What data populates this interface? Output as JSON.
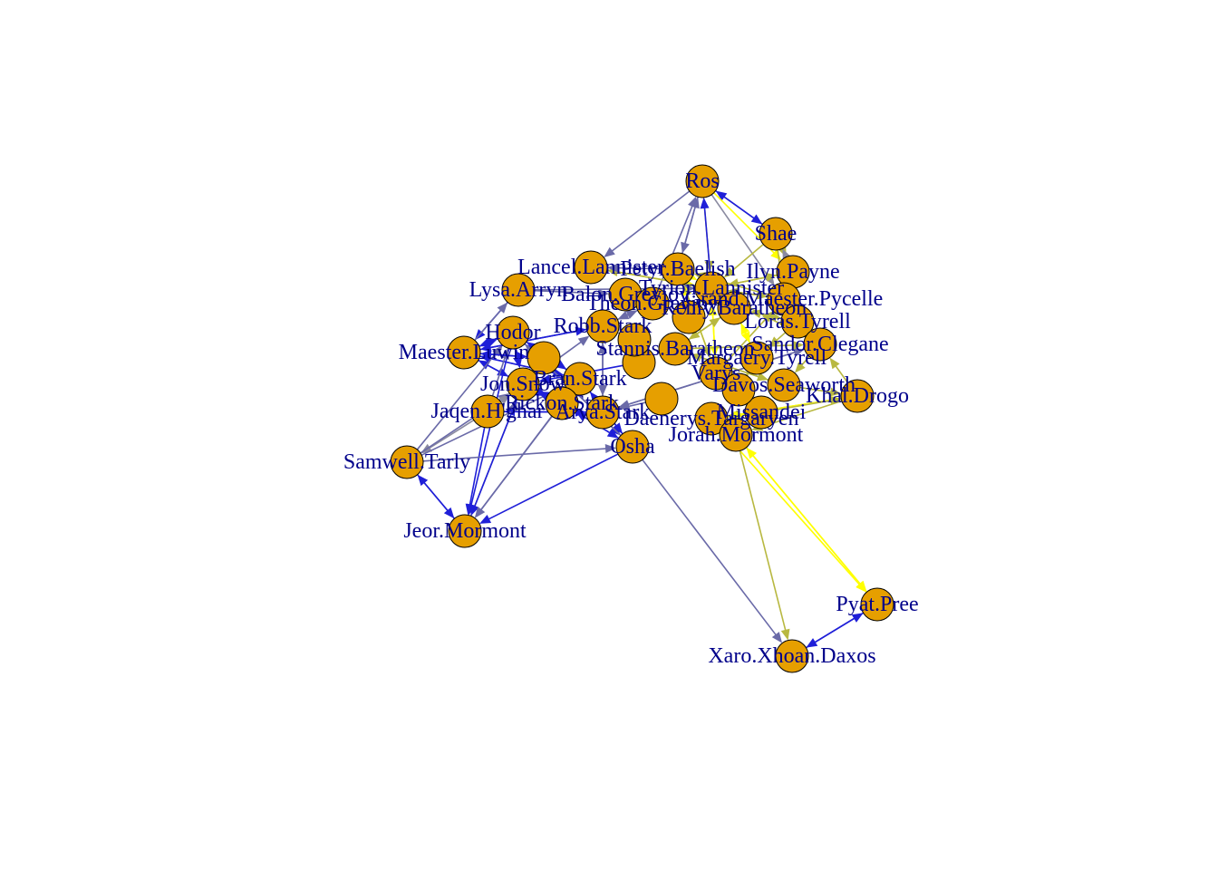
{
  "colors": {
    "node_fill": "#e69f00",
    "node_stroke": "#000000",
    "label": "#00008b",
    "edge_blue": "#1f1fd8",
    "edge_slate": "#6a6aa8",
    "edge_gray": "#8a8aa0",
    "edge_olive": "#b8b840",
    "edge_yellow": "#ffff00"
  },
  "nodes": [
    {
      "id": "ros",
      "label": "Ros"
    },
    {
      "id": "shae",
      "label": "Shae"
    },
    {
      "id": "lancel",
      "label": "Lancel.Lannister"
    },
    {
      "id": "petyr",
      "label": "Petyr.Baelish"
    },
    {
      "id": "tyrion",
      "label": "Tyrion.Lannister"
    },
    {
      "id": "ilyn",
      "label": "Ilyn.Payne"
    },
    {
      "id": "lysa",
      "label": "Lysa.Arryn"
    },
    {
      "id": "balon",
      "label": "Balon.Greyjoy"
    },
    {
      "id": "grand",
      "label": "Grand.Maester.Pycelle"
    },
    {
      "id": "theon",
      "label": "Theon.Greyjoy"
    },
    {
      "id": "renly",
      "label": "Renly.Baratheon"
    },
    {
      "id": "loras",
      "label": "Loras.Tyrell"
    },
    {
      "id": "hodor",
      "label": "Hodor"
    },
    {
      "id": "robb",
      "label": "Robb.Stark"
    },
    {
      "id": "sandor",
      "label": "Sandor.Clegane"
    },
    {
      "id": "maester",
      "label": "Maester.Luwin"
    },
    {
      "id": "stannis",
      "label": "Stannis.Baratheon"
    },
    {
      "id": "margaery",
      "label": "Margaery.Tyrell"
    },
    {
      "id": "jon",
      "label": "Jon.Snow"
    },
    {
      "id": "bran",
      "label": "Bran.Stark"
    },
    {
      "id": "varys",
      "label": "Varys"
    },
    {
      "id": "davos",
      "label": "Davos.Seaworth"
    },
    {
      "id": "khal",
      "label": "Khal.Drogo"
    },
    {
      "id": "jaqen",
      "label": "Jaqen.H'ghar"
    },
    {
      "id": "rickon",
      "label": "Rickon.Stark"
    },
    {
      "id": "arya",
      "label": "Arya.Stark"
    },
    {
      "id": "missandei",
      "label": "Missandei"
    },
    {
      "id": "daenerys",
      "label": "Daenerys.Targaryen"
    },
    {
      "id": "jorah",
      "label": "Jorah.Mormont"
    },
    {
      "id": "osha",
      "label": "Osha"
    },
    {
      "id": "samwell",
      "label": "Samwell.Tarly"
    },
    {
      "id": "jeor",
      "label": "Jeor.Mormont"
    },
    {
      "id": "pyat",
      "label": "Pyat.Pree"
    },
    {
      "id": "xaro",
      "label": "Xaro.Xhoan.Daxos"
    },
    {
      "id": "n35",
      "label": ""
    },
    {
      "id": "n36",
      "label": ""
    },
    {
      "id": "n37",
      "label": ""
    },
    {
      "id": "n38",
      "label": ""
    },
    {
      "id": "n39",
      "label": ""
    },
    {
      "id": "n40",
      "label": ""
    }
  ],
  "edges": [
    [
      "ros",
      "shae",
      "blue"
    ],
    [
      "shae",
      "ros",
      "blue"
    ],
    [
      "ros",
      "tyrion",
      "olive"
    ],
    [
      "tyrion",
      "ros",
      "blue"
    ],
    [
      "ros",
      "petyr",
      "slate"
    ],
    [
      "petyr",
      "ros",
      "slate"
    ],
    [
      "ros",
      "ilyn",
      "yellow"
    ],
    [
      "theon",
      "ros",
      "slate"
    ],
    [
      "ros",
      "lancel",
      "slate"
    ],
    [
      "ros",
      "grand",
      "gray"
    ],
    [
      "shae",
      "tyrion",
      "olive"
    ],
    [
      "shae",
      "ilyn",
      "olive"
    ],
    [
      "shae",
      "grand",
      "olive"
    ],
    [
      "ilyn",
      "shae",
      "gray"
    ],
    [
      "hodor",
      "maester",
      "blue"
    ],
    [
      "maester",
      "hodor",
      "blue"
    ],
    [
      "maester",
      "jon",
      "blue"
    ],
    [
      "jon",
      "maester",
      "blue"
    ],
    [
      "hodor",
      "jon",
      "blue"
    ],
    [
      "maester",
      "bran",
      "blue"
    ],
    [
      "bran",
      "maester",
      "blue"
    ],
    [
      "robb",
      "maester",
      "blue"
    ],
    [
      "jaqen",
      "arya",
      "blue"
    ],
    [
      "arya",
      "jaqen",
      "blue"
    ],
    [
      "jaqen",
      "jeor",
      "blue"
    ],
    [
      "jaqen",
      "samwell",
      "gray"
    ],
    [
      "samwell",
      "jeor",
      "blue"
    ],
    [
      "jeor",
      "samwell",
      "blue"
    ],
    [
      "samwell",
      "jon",
      "slate"
    ],
    [
      "samwell",
      "hodor",
      "slate"
    ],
    [
      "samwell",
      "osha",
      "slate"
    ],
    [
      "samwell",
      "bran",
      "slate"
    ],
    [
      "jeor",
      "jon",
      "slate"
    ],
    [
      "hodor",
      "jeor",
      "blue"
    ],
    [
      "bran",
      "jeor",
      "slate"
    ],
    [
      "osha",
      "jeor",
      "blue"
    ],
    [
      "jon",
      "jeor",
      "blue"
    ],
    [
      "rickon",
      "jeor",
      "slate"
    ],
    [
      "osha",
      "xaro",
      "slate"
    ],
    [
      "jorah",
      "pyat",
      "yellow"
    ],
    [
      "pyat",
      "jorah",
      "yellow"
    ],
    [
      "daenerys",
      "pyat",
      "yellow"
    ],
    [
      "jorah",
      "xaro",
      "olive"
    ],
    [
      "xaro",
      "pyat",
      "blue"
    ],
    [
      "pyat",
      "xaro",
      "blue"
    ],
    [
      "khal",
      "daenerys",
      "olive"
    ],
    [
      "khal",
      "jorah",
      "olive"
    ],
    [
      "daenerys",
      "khal",
      "yellow"
    ],
    [
      "davos",
      "khal",
      "olive"
    ],
    [
      "missandei",
      "khal",
      "olive"
    ],
    [
      "sandor",
      "davos",
      "olive"
    ],
    [
      "stannis",
      "davos",
      "olive"
    ],
    [
      "loras",
      "renly",
      "olive"
    ],
    [
      "renly",
      "loras",
      "olive"
    ],
    [
      "grand",
      "tyrion",
      "olive"
    ],
    [
      "tyrion",
      "grand",
      "olive"
    ],
    [
      "petyr",
      "tyrion",
      "yellow"
    ],
    [
      "tyrion",
      "varys",
      "yellow"
    ],
    [
      "varys",
      "tyrion",
      "yellow"
    ],
    [
      "lancel",
      "tyrion",
      "yellow"
    ],
    [
      "tyrion",
      "lancel",
      "olive"
    ],
    [
      "balon",
      "theon",
      "slate"
    ],
    [
      "theon",
      "balon",
      "slate"
    ],
    [
      "lysa",
      "tyrion",
      "slate"
    ],
    [
      "lysa",
      "balon",
      "slate"
    ],
    [
      "lysa",
      "maester",
      "blue"
    ],
    [
      "robb",
      "theon",
      "slate"
    ],
    [
      "theon",
      "robb",
      "slate"
    ],
    [
      "robb",
      "arya",
      "slate"
    ],
    [
      "arya",
      "robb",
      "slate"
    ],
    [
      "margaery",
      "renly",
      "yellow"
    ],
    [
      "renly",
      "stannis",
      "olive"
    ],
    [
      "stannis",
      "renly",
      "olive"
    ],
    [
      "bran",
      "osha",
      "blue"
    ],
    [
      "osha",
      "bran",
      "blue"
    ],
    [
      "rickon",
      "osha",
      "blue"
    ],
    [
      "osha",
      "rickon",
      "blue"
    ],
    [
      "hodor",
      "osha",
      "blue"
    ],
    [
      "osha",
      "hodor",
      "slate"
    ],
    [
      "jon",
      "robb",
      "slate"
    ],
    [
      "arya",
      "sandor",
      "slate"
    ],
    [
      "sandor",
      "arya",
      "slate"
    ],
    [
      "varys",
      "petyr",
      "yellow"
    ],
    [
      "petyr",
      "varys",
      "olive"
    ],
    [
      "daenerys",
      "jorah",
      "yellow"
    ],
    [
      "jorah",
      "daenerys",
      "olive"
    ],
    [
      "missandei",
      "daenerys",
      "olive"
    ],
    [
      "daenerys",
      "missandei",
      "yellow"
    ],
    [
      "davos",
      "stannis",
      "olive"
    ],
    [
      "jaqen",
      "jon",
      "gray"
    ],
    [
      "jaqen",
      "hodor",
      "slate"
    ],
    [
      "maester",
      "robb",
      "blue"
    ],
    [
      "maester",
      "lysa",
      "slate"
    ],
    [
      "n35",
      "maester",
      "blue"
    ],
    [
      "maester",
      "n35",
      "blue"
    ],
    [
      "n36",
      "jon",
      "blue"
    ],
    [
      "n37",
      "arya",
      "slate"
    ],
    [
      "n38",
      "tyrion",
      "yellow"
    ],
    [
      "n39",
      "robb",
      "slate"
    ],
    [
      "n40",
      "margaery",
      "olive"
    ],
    [
      "rickon",
      "jon",
      "blue"
    ],
    [
      "jon",
      "rickon",
      "blue"
    ],
    [
      "bran",
      "rickon",
      "slate"
    ],
    [
      "hodor",
      "bran",
      "blue"
    ],
    [
      "bran",
      "hodor",
      "blue"
    ],
    [
      "petyr",
      "lancel",
      "slate"
    ],
    [
      "grand",
      "petyr",
      "olive"
    ],
    [
      "sandor",
      "tyrion",
      "olive"
    ],
    [
      "ilyn",
      "tyrion",
      "olive"
    ],
    [
      "tyrion",
      "ilyn",
      "olive"
    ],
    [
      "varys",
      "grand",
      "olive"
    ],
    [
      "renly",
      "margaery",
      "yellow"
    ],
    [
      "loras",
      "margaery",
      "olive"
    ],
    [
      "stannis",
      "sandor",
      "olive"
    ],
    [
      "khal",
      "sandor",
      "olive"
    ]
  ]
}
